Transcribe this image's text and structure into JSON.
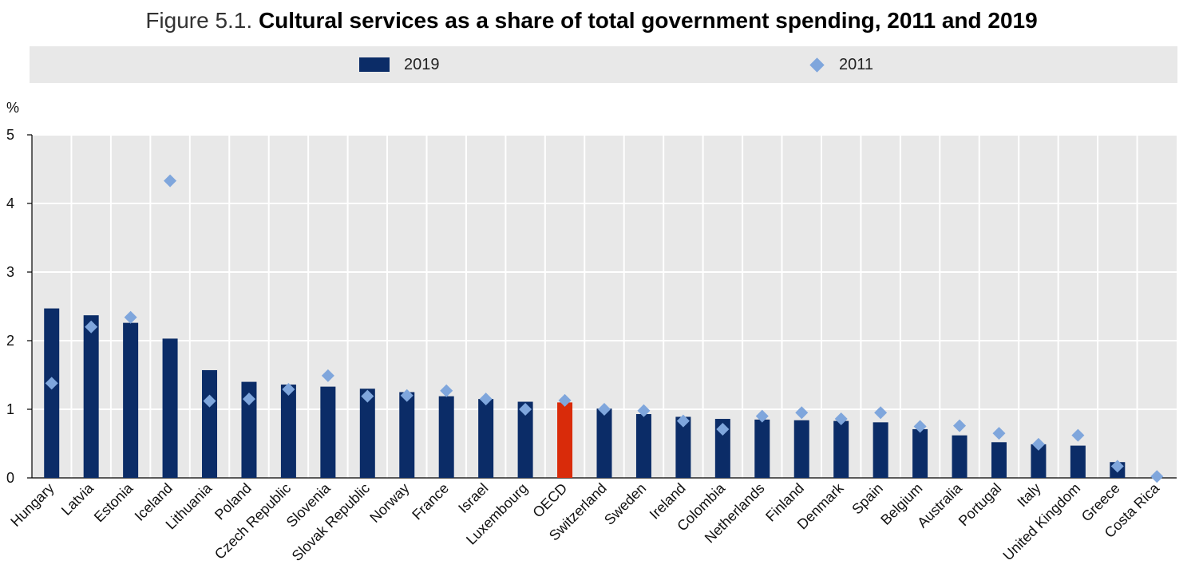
{
  "title": {
    "prefix": "Figure 5.1.",
    "main": "Cultural services as a share of total government spending, 2011 and 2019"
  },
  "colors": {
    "bar_2019": "#0b2c67",
    "bar_highlight": "#d92b0a",
    "marker_2011": "#7fa6dc",
    "plot_bg": "#e8e8e8",
    "grid": "#ffffff"
  },
  "chart_data": {
    "type": "bar",
    "ylabel": "%",
    "ylim": [
      0,
      5
    ],
    "yticks": [
      0,
      1,
      2,
      3,
      4,
      5
    ],
    "grid": true,
    "legend_placement": "top",
    "highlight_category": "OECD",
    "categories": [
      "Hungary",
      "Latvia",
      "Estonia",
      "Iceland",
      "Lithuania",
      "Poland",
      "Czech Republic",
      "Slovenia",
      "Slovak Republic",
      "Norway",
      "France",
      "Israel",
      "Luxembourg",
      "OECD",
      "Switzerland",
      "Sweden",
      "Ireland",
      "Colombia",
      "Netherlands",
      "Finland",
      "Denmark",
      "Spain",
      "Belgium",
      "Australia",
      "Portugal",
      "Italy",
      "United Kingdom",
      "Greece",
      "Costa Rica"
    ],
    "series": [
      {
        "name": "2019",
        "style": "bar",
        "values": [
          2.47,
          2.37,
          2.26,
          2.03,
          1.57,
          1.4,
          1.36,
          1.33,
          1.3,
          1.25,
          1.19,
          1.15,
          1.11,
          1.1,
          1.01,
          0.93,
          0.89,
          0.86,
          0.85,
          0.84,
          0.83,
          0.81,
          0.71,
          0.62,
          0.52,
          0.49,
          0.47,
          0.23,
          0.0
        ]
      },
      {
        "name": "2011",
        "style": "marker",
        "values": [
          1.38,
          2.2,
          2.34,
          4.33,
          1.12,
          1.15,
          1.29,
          1.49,
          1.19,
          1.2,
          1.27,
          1.15,
          1.0,
          1.13,
          1.0,
          0.98,
          0.83,
          0.71,
          0.9,
          0.95,
          0.86,
          0.95,
          0.75,
          0.76,
          0.65,
          0.49,
          0.62,
          0.17,
          0.02
        ]
      }
    ]
  }
}
